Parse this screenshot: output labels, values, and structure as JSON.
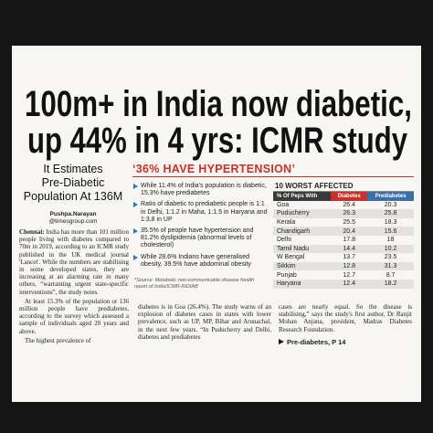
{
  "headline": [
    "100m+ in India now diabetic,",
    "up 44% in 4 yrs: ICMR study"
  ],
  "subheadline": [
    "It Estimates",
    "Pre-Diabetic",
    "Population At 136M"
  ],
  "byline": {
    "name": "Pushpa.Narayan",
    "handle": "@timesgroup.com"
  },
  "body_left": {
    "dateline": "Chennai:",
    "paragraphs": [
      "India has more than 101 million people living with diabetes compared to 70m in 2019, according to an ICMR study published in the UK medical journal 'Lancet'. While the numbers are stabilising in some developed states, they are increasing at an alarming rate in many others, “warranting urgent state-specific interventions”, the study notes.",
      "At least 15.3% of the population or 136 million people have prediabetes, according to the survey which assessed a sample of individuals aged 20 years and above.",
      "The highest prevalence of"
    ]
  },
  "box": {
    "title": "‘36% HAVE HYPERTENSION’",
    "bullets": [
      "While 11.4% of India's population is diabetic, 15.3% have prediabetes",
      "Ratio of diabetic to prediabetic people is 1:1 in Delhi, 1:1.2 in Maha, 1:1.5 in Haryana and 1:3.8 in UP",
      "35.5% of people have hypertension and 81.2% dyslipidemia (abnormal levels of cholesterol)",
      "While 28.6% Indians have generalised obesity, 39.5% have abdominal obesity"
    ],
    "source": "*Source: Metabolic non-communicable disease health report of India/ICMR-INDIAB"
  },
  "table": {
    "title": "10 WORST AFFECTED",
    "columns": [
      "% Of Peps With",
      "Diabetes",
      "Prediabetes"
    ],
    "rows": [
      [
        "Goa",
        26.4,
        20.3
      ],
      [
        "Puducherry",
        26.3,
        25.8
      ],
      [
        "Kerala",
        25.5,
        18.3
      ],
      [
        "Chandigarh",
        20.4,
        15.6
      ],
      [
        "Delhi",
        17.8,
        18
      ],
      [
        "Tamil Nadu",
        14.4,
        10.2
      ],
      [
        "W Bengal",
        13.7,
        23.5
      ],
      [
        "Sikkim",
        12.8,
        31.3
      ],
      [
        "Punjab",
        12.7,
        8.7
      ],
      [
        "Haryana",
        12.4,
        18.2
      ]
    ]
  },
  "body_middle": "diabetes is in Goa (26.4%). The study warns of an explosion of diabetes cases in states with lower prevalence, such as UP, MP, Bihar and Arunachal, in the next few years. “In Puducherry and Delhi, diabetes and prediabetes",
  "body_right": "cases are nearly equal. So the disease is stabilising,” says the study's first author, Dr Ranjit Mohan Anjana, president, Madras Diabetes Research Foundation.",
  "jump": "Pre-diabetes, P 14"
}
